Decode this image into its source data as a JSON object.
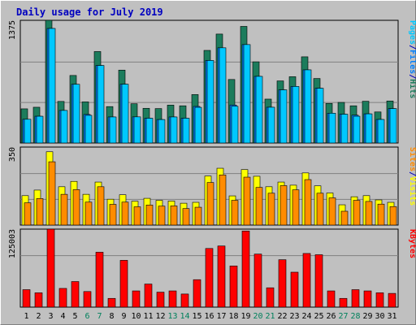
{
  "title": "Daily usage for July 2019",
  "colors": {
    "background": "#c0c0c0",
    "panel": "#c0c0c0",
    "grid": "#808080",
    "hits": "#1c7c5c",
    "files": "#00c8ff",
    "pages": "#0080ff",
    "visits": "#ffff00",
    "sites": "#ff8c00",
    "kbytes": "#ff0000",
    "title": "#0000c0",
    "label_default": "#000000",
    "label_weekend": "#00805c"
  },
  "chart_data": [
    {
      "type": "bar",
      "name": "hits-files-pages",
      "ymax_label": "1375",
      "ylim": [
        0,
        1375
      ],
      "legend": [
        {
          "label": "Pages",
          "color": "#00c8ff"
        },
        {
          "label": "/",
          "color": "#0000c0"
        },
        {
          "label": "Files",
          "color": "#0080ff"
        },
        {
          "label": "/",
          "color": "#0000c0"
        },
        {
          "label": "Hits",
          "color": "#1c7c5c"
        }
      ],
      "categories": [
        "1",
        "2",
        "3",
        "4",
        "5",
        "6",
        "7",
        "8",
        "9",
        "10",
        "11",
        "12",
        "13",
        "14",
        "15",
        "16",
        "17",
        "18",
        "19",
        "20",
        "21",
        "22",
        "23",
        "24",
        "25",
        "26",
        "27",
        "28",
        "29",
        "30",
        "31"
      ],
      "series": [
        {
          "name": "Hits",
          "values": [
            383,
            401,
            1375,
            466,
            757,
            461,
            1025,
            408,
            817,
            440,
            389,
            386,
            425,
            417,
            543,
            1038,
            1221,
            712,
            1307,
            910,
            492,
            696,
            743,
            966,
            723,
            444,
            455,
            417,
            468,
            348,
            471
          ]
        },
        {
          "name": "Files",
          "values": [
            266,
            300,
            1284,
            365,
            658,
            320,
            869,
            292,
            659,
            293,
            278,
            263,
            292,
            278,
            410,
            925,
            1067,
            426,
            1103,
            747,
            401,
            596,
            634,
            820,
            614,
            334,
            323,
            312,
            327,
            264,
            386
          ]
        },
        {
          "name": "Pages",
          "values": [
            266,
            300,
            1284,
            365,
            658,
            310,
            869,
            292,
            659,
            293,
            278,
            263,
            292,
            278,
            400,
            925,
            1067,
            412,
            1103,
            747,
            401,
            596,
            634,
            820,
            614,
            334,
            323,
            300,
            327,
            264,
            386
          ]
        }
      ]
    },
    {
      "type": "bar",
      "name": "visits-sites",
      "ymax_label": "350",
      "ylim": [
        0,
        350
      ],
      "legend": [
        {
          "label": "Sites",
          "color": "#ff8c00"
        },
        {
          "label": "/",
          "color": "#0000c0"
        },
        {
          "label": "Visits",
          "color": "#ffff00"
        }
      ],
      "categories": [
        "1",
        "2",
        "3",
        "4",
        "5",
        "6",
        "7",
        "8",
        "9",
        "10",
        "11",
        "12",
        "13",
        "14",
        "15",
        "16",
        "17",
        "18",
        "19",
        "20",
        "21",
        "22",
        "23",
        "24",
        "25",
        "26",
        "27",
        "28",
        "29",
        "30",
        "31"
      ],
      "series": [
        {
          "name": "Visits",
          "values": [
            132,
            157,
            329,
            172,
            196,
            138,
            193,
            116,
            136,
            107,
            120,
            111,
            108,
            98,
            102,
            220,
            255,
            131,
            249,
            219,
            172,
            193,
            179,
            234,
            176,
            144,
            91,
            127,
            132,
            113,
            102
          ]
        },
        {
          "name": "Sites",
          "values": [
            100,
            119,
            284,
            138,
            159,
            103,
            172,
            93,
            103,
            82,
            90,
            85,
            86,
            74,
            80,
            191,
            225,
            111,
            215,
            169,
            143,
            177,
            158,
            204,
            143,
            122,
            62,
            111,
            106,
            94,
            83
          ]
        }
      ]
    },
    {
      "type": "bar",
      "name": "kbytes",
      "ymax_label": "125003",
      "ylim": [
        0,
        125003
      ],
      "legend": [
        {
          "label": "KBytes",
          "color": "#ff0000"
        }
      ],
      "categories": [
        "1",
        "2",
        "3",
        "4",
        "5",
        "6",
        "7",
        "8",
        "9",
        "10",
        "11",
        "12",
        "13",
        "14",
        "15",
        "16",
        "17",
        "18",
        "19",
        "20",
        "21",
        "22",
        "23",
        "24",
        "25",
        "26",
        "27",
        "28",
        "29",
        "30",
        "31"
      ],
      "series": [
        {
          "name": "KBytes",
          "values": [
            28000,
            23000,
            125003,
            30000,
            41000,
            25000,
            88000,
            14000,
            75000,
            26000,
            37000,
            24000,
            26000,
            21000,
            44000,
            94000,
            98000,
            66000,
            122000,
            85000,
            31000,
            76000,
            56000,
            86000,
            84000,
            26000,
            14000,
            28000,
            26000,
            23000,
            22000
          ]
        }
      ]
    }
  ],
  "weekend_days": [
    "6",
    "7",
    "13",
    "14",
    "20",
    "21",
    "27",
    "28"
  ]
}
